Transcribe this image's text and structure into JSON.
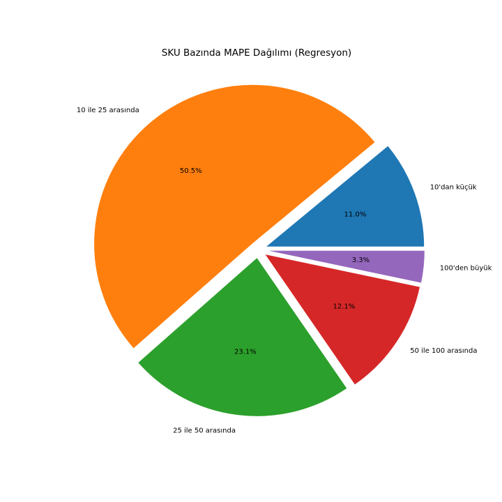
{
  "chart_data": {
    "type": "pie",
    "title": "SKU Bazında MAPE Dağılımı (Regresyon)",
    "start_angle_deg": 0,
    "direction": "counterclockwise",
    "slices": [
      {
        "label": "10'dan küçük",
        "value": 11.0,
        "pct_label": "11.0%",
        "color": "#1f77b4",
        "explode": 0.05
      },
      {
        "label": "10 ile 25 arasında",
        "value": 50.5,
        "pct_label": "50.5%",
        "color": "#ff7f0e",
        "explode": 0.05
      },
      {
        "label": "25 ile 50 arasında",
        "value": 23.1,
        "pct_label": "23.1%",
        "color": "#2ca02c",
        "explode": 0.05
      },
      {
        "label": "50 ile 100 arasında",
        "value": 12.1,
        "pct_label": "12.1%",
        "color": "#d62728",
        "explode": 0.05
      },
      {
        "label": "100'den büyük",
        "value": 3.3,
        "pct_label": "3.3%",
        "color": "#9467bd",
        "explode": 0.05
      }
    ]
  }
}
